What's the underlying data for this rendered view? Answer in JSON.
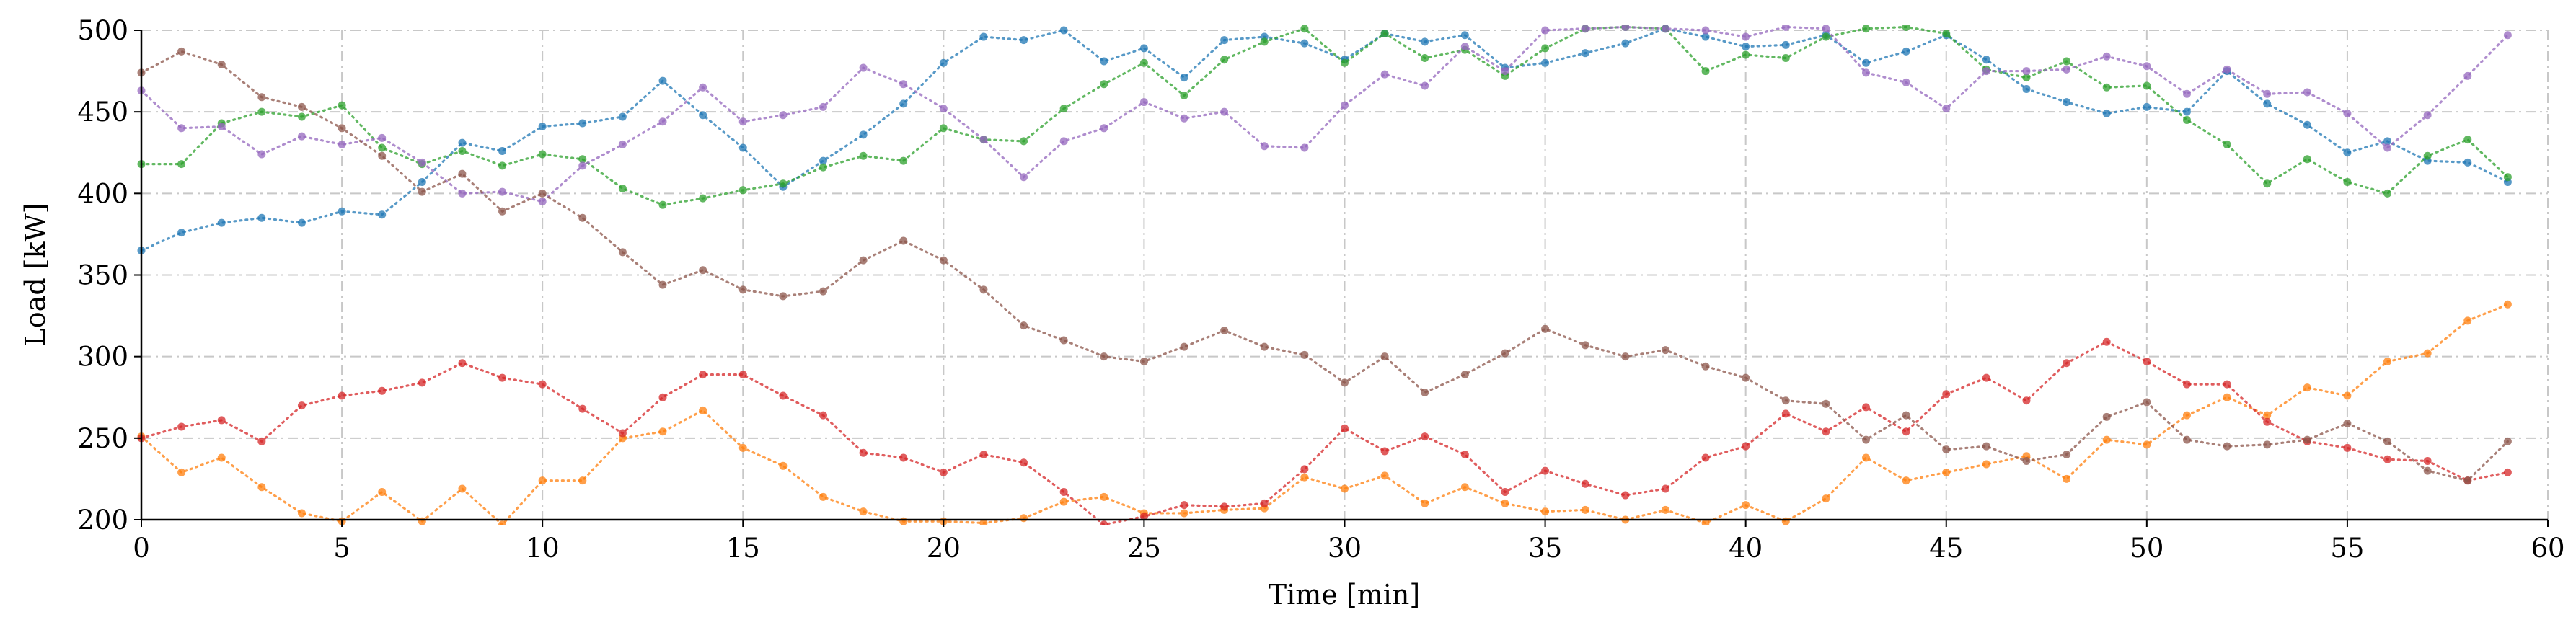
{
  "chart_data": {
    "type": "line",
    "xlabel": "Time [min]",
    "ylabel": "Load [kW]",
    "xlim": [
      0,
      60
    ],
    "ylim": [
      200,
      500
    ],
    "xticks": [
      0,
      5,
      10,
      15,
      20,
      25,
      30,
      35,
      40,
      45,
      50,
      55,
      60
    ],
    "yticks": [
      200,
      250,
      300,
      350,
      400,
      450,
      500
    ],
    "grid": true,
    "legend": "none",
    "line_style": "dotted",
    "x": [
      0,
      1,
      2,
      3,
      4,
      5,
      6,
      7,
      8,
      9,
      10,
      11,
      12,
      13,
      14,
      15,
      16,
      17,
      18,
      19,
      20,
      21,
      22,
      23,
      24,
      25,
      26,
      27,
      28,
      29,
      30,
      31,
      32,
      33,
      34,
      35,
      36,
      37,
      38,
      39,
      40,
      41,
      42,
      43,
      44,
      45,
      46,
      47,
      48,
      49,
      50,
      51,
      52,
      53,
      54,
      55,
      56,
      57,
      58,
      59
    ],
    "series": [
      {
        "color": "#1f77b4",
        "values": [
          365,
          376,
          382,
          385,
          382,
          389,
          387,
          407,
          431,
          426,
          441,
          443,
          447,
          469,
          448,
          428,
          404,
          420,
          436,
          455,
          480,
          496,
          494,
          500,
          481,
          489,
          471,
          494,
          496,
          492,
          482,
          498,
          493,
          497,
          477,
          480,
          486,
          492,
          501,
          496,
          490,
          491,
          497,
          480,
          487,
          497,
          482,
          464,
          456,
          449,
          453,
          450,
          475,
          455,
          442,
          425,
          432,
          420,
          419,
          407
        ]
      },
      {
        "color": "#ff7f0e",
        "values": [
          251,
          229,
          238,
          220,
          204,
          199,
          217,
          199,
          219,
          197,
          224,
          224,
          250,
          254,
          267,
          244,
          233,
          214,
          205,
          199,
          199,
          198,
          201,
          211,
          214,
          204,
          204,
          206,
          207,
          226,
          219,
          227,
          210,
          220,
          210,
          205,
          206,
          200,
          206,
          198,
          209,
          199,
          213,
          238,
          224,
          229,
          234,
          239,
          225,
          249,
          246,
          264,
          275,
          264,
          281,
          276,
          297,
          302,
          322,
          332
        ]
      },
      {
        "color": "#2ca02c",
        "values": [
          418,
          418,
          443,
          450,
          447,
          454,
          428,
          418,
          426,
          417,
          424,
          421,
          403,
          393,
          397,
          402,
          406,
          416,
          423,
          420,
          440,
          433,
          432,
          452,
          467,
          480,
          460,
          482,
          493,
          501,
          480,
          498,
          483,
          488,
          472,
          489,
          501,
          502,
          501,
          475,
          485,
          483,
          496,
          501,
          502,
          498,
          476,
          471,
          481,
          465,
          466,
          445,
          430,
          406,
          421,
          407,
          400,
          423,
          433,
          410
        ]
      },
      {
        "color": "#d62728",
        "values": [
          250,
          257,
          261,
          248,
          270,
          276,
          279,
          284,
          296,
          287,
          283,
          268,
          253,
          275,
          289,
          289,
          276,
          264,
          241,
          238,
          229,
          240,
          235,
          217,
          197,
          202,
          209,
          208,
          210,
          231,
          256,
          242,
          251,
          240,
          217,
          230,
          222,
          215,
          219,
          238,
          245,
          265,
          254,
          269,
          254,
          277,
          287,
          273,
          296,
          309,
          297,
          283,
          283,
          260,
          248,
          244,
          237,
          236,
          224,
          229
        ]
      },
      {
        "color": "#9467bd",
        "values": [
          463,
          440,
          441,
          424,
          435,
          430,
          434,
          419,
          400,
          401,
          395,
          417,
          430,
          444,
          465,
          444,
          448,
          453,
          477,
          467,
          452,
          433,
          410,
          432,
          440,
          456,
          446,
          450,
          429,
          428,
          454,
          473,
          466,
          490,
          475,
          500,
          501,
          502,
          501,
          500,
          496,
          502,
          501,
          474,
          468,
          452,
          475,
          475,
          476,
          484,
          478,
          461,
          476,
          461,
          462,
          449,
          428,
          448,
          472,
          497
        ]
      },
      {
        "color": "#8c564b",
        "values": [
          474,
          487,
          479,
          459,
          453,
          440,
          423,
          401,
          412,
          389,
          400,
          385,
          364,
          344,
          353,
          341,
          337,
          340,
          359,
          371,
          359,
          341,
          319,
          310,
          300,
          297,
          306,
          316,
          306,
          301,
          284,
          300,
          278,
          289,
          302,
          317,
          307,
          300,
          304,
          294,
          287,
          273,
          271,
          249,
          264,
          243,
          245,
          236,
          240,
          263,
          272,
          249,
          245,
          246,
          249,
          259,
          248,
          230,
          224,
          248
        ]
      }
    ]
  }
}
